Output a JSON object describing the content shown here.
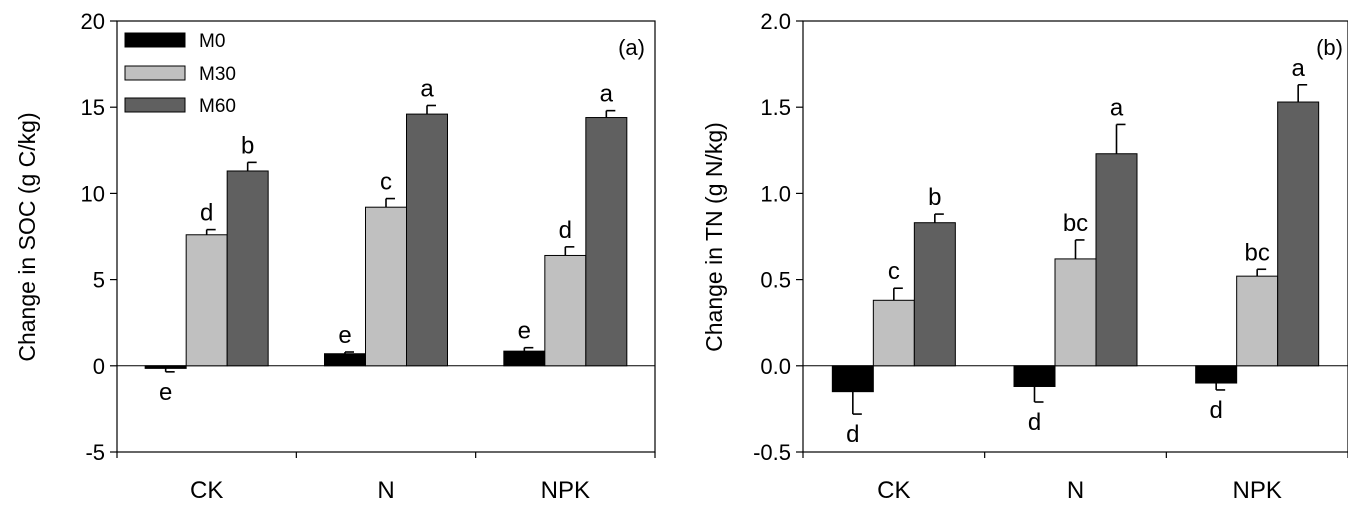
{
  "chart_data": [
    {
      "type": "bar",
      "panel_label": "(a)",
      "ylabel": "Change in SOC (g C/kg)",
      "categories": [
        "CK",
        "N",
        "NPK"
      ],
      "ylim": [
        -5,
        20
      ],
      "yticks": [
        -5,
        0,
        5,
        10,
        15,
        20
      ],
      "ytick_labels": [
        "-5",
        "0",
        "5",
        "10",
        "15",
        "20"
      ],
      "legend": {
        "placement": "top-left",
        "entries": [
          "M0",
          "M30",
          "M60"
        ]
      },
      "series": [
        {
          "name": "M0",
          "color": "#000000",
          "values": [
            -0.15,
            0.7,
            0.85
          ],
          "errors": [
            0.2,
            0.1,
            0.2
          ],
          "labels": [
            "e",
            "e",
            "e"
          ]
        },
        {
          "name": "M30",
          "color": "#c0c0c0",
          "values": [
            7.6,
            9.2,
            6.4
          ],
          "errors": [
            0.3,
            0.5,
            0.5
          ],
          "labels": [
            "d",
            "c",
            "d"
          ]
        },
        {
          "name": "M60",
          "color": "#606060",
          "values": [
            11.3,
            14.6,
            14.4
          ],
          "errors": [
            0.5,
            0.5,
            0.4
          ],
          "labels": [
            "b",
            "a",
            "a"
          ]
        }
      ]
    },
    {
      "type": "bar",
      "panel_label": "(b)",
      "ylabel": "Change in TN (g N/kg)",
      "categories": [
        "CK",
        "N",
        "NPK"
      ],
      "ylim": [
        -0.5,
        2.0
      ],
      "yticks": [
        -0.5,
        0,
        0.5,
        1.0,
        1.5,
        2.0
      ],
      "ytick_labels": [
        "-0.5",
        "0.0",
        "0.5",
        "1.0",
        "1.5",
        "2.0"
      ],
      "series": [
        {
          "name": "M0",
          "color": "#000000",
          "values": [
            -0.15,
            -0.12,
            -0.1
          ],
          "errors": [
            0.13,
            0.09,
            0.04
          ],
          "labels": [
            "d",
            "d",
            "d"
          ]
        },
        {
          "name": "M30",
          "color": "#c0c0c0",
          "values": [
            0.38,
            0.62,
            0.52
          ],
          "errors": [
            0.07,
            0.11,
            0.04
          ],
          "labels": [
            "c",
            "bc",
            "bc"
          ]
        },
        {
          "name": "M60",
          "color": "#606060",
          "values": [
            0.83,
            1.23,
            1.53
          ],
          "errors": [
            0.05,
            0.17,
            0.1
          ],
          "labels": [
            "b",
            "a",
            "a"
          ]
        }
      ]
    }
  ]
}
